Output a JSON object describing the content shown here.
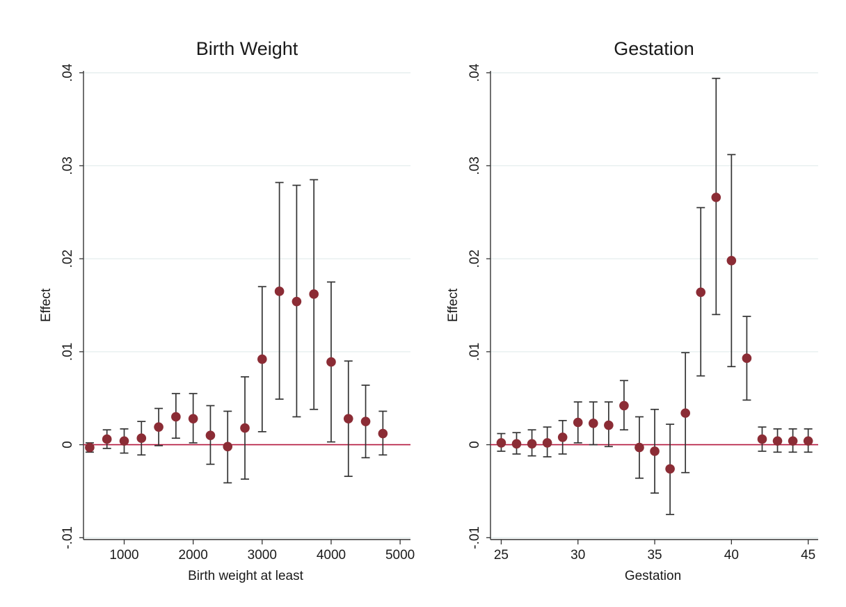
{
  "chart_data": [
    {
      "type": "scatter",
      "title": "Birth Weight",
      "xlabel": "Birth weight at least",
      "ylabel": "Effect",
      "xlim": [
        410,
        5150
      ],
      "ylim": [
        -0.0102,
        0.0402
      ],
      "xticks": [
        1000,
        2000,
        3000,
        4000,
        5000
      ],
      "yticks": [
        -0.01,
        0,
        0.01,
        0.02,
        0.03,
        0.04
      ],
      "ytick_labels": [
        "-.01",
        "0",
        ".01",
        ".02",
        ".03",
        ".04"
      ],
      "grid": true,
      "reference_line": 0,
      "colors": {
        "point": "#8b2c35",
        "reference": "#b3163c",
        "errorbar": "#333333",
        "grid": "#e4eeee"
      },
      "series": [
        {
          "x": [
            500,
            750,
            1000,
            1250,
            1500,
            1750,
            2000,
            2250,
            2500,
            2750,
            3000,
            3250,
            3500,
            3750,
            4000,
            4250,
            4500,
            4750
          ],
          "y": [
            -0.0003,
            0.0006,
            0.0004,
            0.0007,
            0.0019,
            0.003,
            0.0028,
            0.001,
            -0.0002,
            0.0018,
            0.0092,
            0.0165,
            0.0154,
            0.0162,
            0.0089,
            0.0028,
            0.0025,
            0.0012
          ],
          "lower": [
            -0.0008,
            -0.0004,
            -0.0009,
            -0.0011,
            -0.0001,
            0.0007,
            0.0002,
            -0.0021,
            -0.0041,
            -0.0037,
            0.0014,
            0.0049,
            0.003,
            0.0038,
            0.0003,
            -0.0034,
            -0.0014,
            -0.0011
          ],
          "upper": [
            0.0002,
            0.0016,
            0.0017,
            0.0025,
            0.0039,
            0.0055,
            0.0055,
            0.0042,
            0.0036,
            0.0073,
            0.017,
            0.0282,
            0.0279,
            0.0285,
            0.0175,
            0.009,
            0.0064,
            0.0036
          ]
        }
      ]
    },
    {
      "type": "scatter",
      "title": "Gestation",
      "xlabel": "Gestation",
      "ylabel": "Effect",
      "xlim": [
        24.3,
        45.65
      ],
      "ylim": [
        -0.0102,
        0.0402
      ],
      "xticks": [
        25,
        30,
        35,
        40,
        45
      ],
      "yticks": [
        -0.01,
        0,
        0.01,
        0.02,
        0.03,
        0.04
      ],
      "ytick_labels": [
        "-.01",
        "0",
        ".01",
        ".02",
        ".03",
        ".04"
      ],
      "grid": true,
      "reference_line": 0,
      "colors": {
        "point": "#8b2c35",
        "reference": "#b3163c",
        "errorbar": "#333333",
        "grid": "#e4eeee"
      },
      "series": [
        {
          "x": [
            25,
            26,
            27,
            28,
            29,
            30,
            31,
            32,
            33,
            34,
            35,
            36,
            37,
            38,
            39,
            40,
            41,
            42,
            43,
            44,
            45
          ],
          "y": [
            0.0002,
            0.0001,
            0.0001,
            0.0002,
            0.0008,
            0.0024,
            0.0023,
            0.0021,
            0.0042,
            -0.0003,
            -0.0007,
            -0.0026,
            0.0034,
            0.0164,
            0.0266,
            0.0198,
            0.0093,
            0.0006,
            0.0004,
            0.0004,
            0.0004
          ],
          "lower": [
            -0.0007,
            -0.001,
            -0.0012,
            -0.0013,
            -0.001,
            0.0002,
            0.0,
            -0.0002,
            0.0016,
            -0.0036,
            -0.0052,
            -0.0075,
            -0.003,
            0.0074,
            0.014,
            0.0084,
            0.0048,
            -0.0007,
            -0.0008,
            -0.0008,
            -0.0008
          ],
          "upper": [
            0.0012,
            0.0013,
            0.0016,
            0.0019,
            0.0026,
            0.0046,
            0.0046,
            0.0046,
            0.0069,
            0.003,
            0.0038,
            0.0022,
            0.0099,
            0.0255,
            0.0394,
            0.0312,
            0.0138,
            0.0019,
            0.0017,
            0.0017,
            0.0017
          ]
        }
      ]
    }
  ]
}
